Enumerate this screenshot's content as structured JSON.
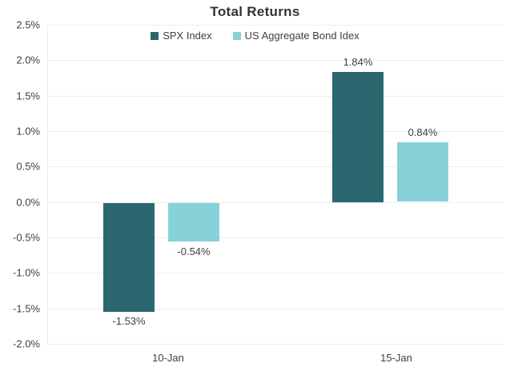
{
  "chart_data": {
    "type": "bar",
    "title": "Total Returns",
    "categories": [
      "10-Jan",
      "15-Jan"
    ],
    "series": [
      {
        "name": "SPX Index",
        "color": "#2A676E",
        "values": [
          -1.53,
          1.84
        ],
        "data_labels": [
          "-1.53%",
          "1.84%"
        ]
      },
      {
        "name": "US Aggregate Bond Idex",
        "color": "#87D2D8",
        "values": [
          -0.54,
          0.84
        ],
        "data_labels": [
          "-0.54%",
          "0.84%"
        ]
      }
    ],
    "xlabel": "",
    "ylabel": "",
    "ylim": [
      -2.0,
      2.5
    ],
    "y_tick_step": 0.5,
    "y_tick_labels": [
      "2.5%",
      "2.0%",
      "1.5%",
      "1.0%",
      "0.5%",
      "0.0%",
      "-0.5%",
      "-1.0%",
      "-1.5%",
      "-2.0%"
    ],
    "grid": true,
    "legend_position": "top-center",
    "colors": {
      "grid_line": "#EDEDED",
      "axis_line": "#EDEDED",
      "tick_text": "#3F3F3F",
      "label_text": "#3F3F3F",
      "title_text": "#333333",
      "background": "#FFFFFF"
    }
  }
}
